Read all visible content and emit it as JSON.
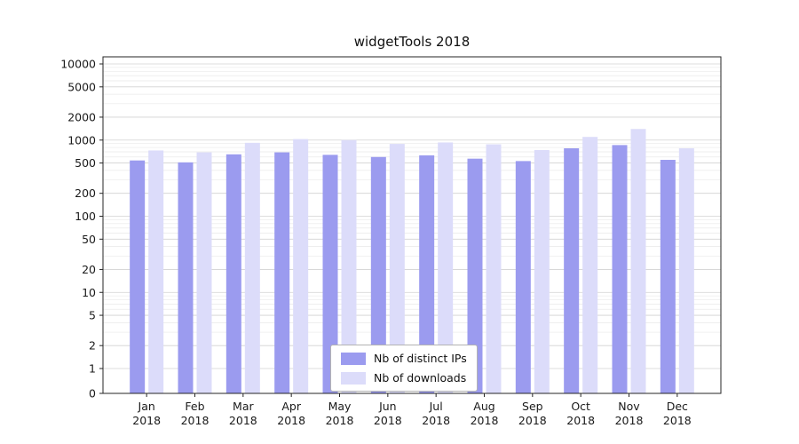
{
  "chart_data": {
    "type": "bar",
    "title": "widgetTools 2018",
    "categories": [
      "Jan 2018",
      "Feb 2018",
      "Mar 2018",
      "Apr 2018",
      "May 2018",
      "Jun 2018",
      "Jul 2018",
      "Aug 2018",
      "Sep 2018",
      "Oct 2018",
      "Nov 2018",
      "Dec 2018"
    ],
    "series": [
      {
        "name": "Nb of distinct IPs",
        "color": "#9b9bef",
        "values": [
          540,
          510,
          650,
          690,
          640,
          600,
          630,
          570,
          530,
          780,
          860,
          550
        ]
      },
      {
        "name": "Nb of downloads",
        "color": "#dcdcfa",
        "values": [
          730,
          690,
          920,
          1030,
          1000,
          890,
          930,
          880,
          740,
          1100,
          1400,
          780
        ]
      }
    ],
    "xlabel": "",
    "ylabel": "",
    "yscale": "symlog",
    "yticks": [
      0,
      1,
      2,
      5,
      10,
      20,
      50,
      100,
      200,
      500,
      1000,
      2000,
      5000,
      10000
    ],
    "ylim": [
      0,
      12000
    ],
    "grid": "horizontal major and minor gridlines",
    "legend_position": "bottom-center-inside"
  },
  "colors": {
    "background": "#ffffff",
    "axis": "#262626",
    "grid_major": "#d2d2d2",
    "grid_minor": "#e9e9e9",
    "tick_text": "#1a1a1a",
    "legend_border": "#b3b3b3"
  }
}
